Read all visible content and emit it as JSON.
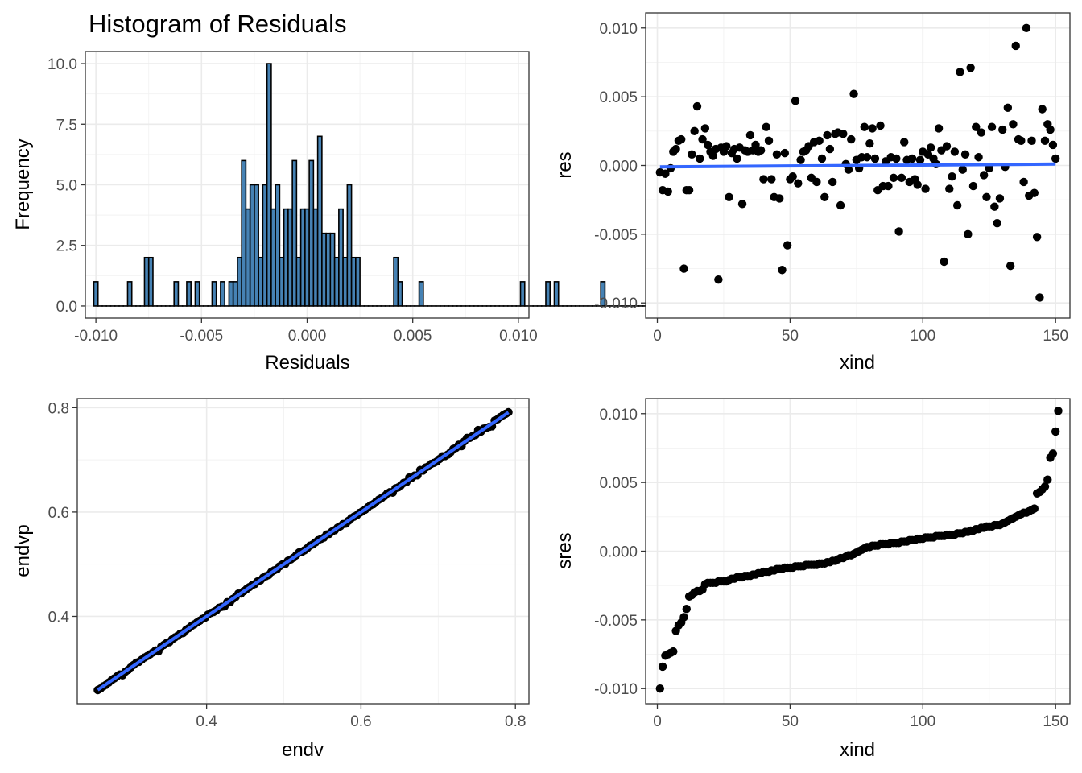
{
  "chart_data": [
    {
      "id": "hist",
      "type": "bar",
      "title": "Histogram of Residuals",
      "xlabel": "Residuals",
      "ylabel": "Frequency",
      "xlim": [
        -0.0105,
        0.0105
      ],
      "ylim": [
        -0.5,
        10.5
      ],
      "xticks": [
        -0.01,
        -0.005,
        0.0,
        0.005,
        0.01
      ],
      "xtick_labels": [
        "-0.010",
        "-0.005",
        "0.000",
        "0.005",
        "0.010"
      ],
      "yticks": [
        0,
        2.5,
        5,
        7.5,
        10
      ],
      "ytick_labels": [
        "0.0",
        "2.5",
        "5.0",
        "7.5",
        "10.0"
      ],
      "bin_start": -0.0101,
      "bin_width": 0.0002,
      "values": [
        1,
        0,
        0,
        0,
        0,
        0,
        0,
        0,
        1,
        0,
        0,
        0,
        2,
        2,
        0,
        0,
        0,
        0,
        0,
        1,
        0,
        0,
        1,
        0,
        1,
        0,
        0,
        0,
        1,
        0,
        1,
        0,
        1,
        1,
        2,
        6,
        4,
        5,
        5,
        2,
        5,
        10,
        4,
        5,
        2,
        4,
        4,
        6,
        2,
        4,
        4,
        6,
        4,
        7,
        3,
        3,
        3,
        2,
        4,
        2,
        5,
        2,
        2,
        0,
        0,
        0,
        0,
        0,
        0,
        0,
        0,
        2,
        1,
        0,
        0,
        0,
        0,
        1,
        0,
        0,
        0,
        0,
        0,
        0,
        0,
        0,
        0,
        0,
        0,
        0,
        0,
        0,
        0,
        0,
        0,
        0,
        0,
        0,
        0,
        0,
        0,
        1,
        0,
        0,
        0,
        0,
        0,
        1,
        0,
        1,
        0,
        0,
        0,
        0,
        0,
        0,
        0,
        0,
        0,
        0,
        1,
        0,
        0,
        0,
        0,
        0,
        0,
        0,
        0,
        0,
        0,
        0,
        1
      ],
      "bar_fill": "#4682b4",
      "bar_stroke": "#000000"
    },
    {
      "id": "res",
      "type": "scatter",
      "title": "",
      "xlabel": "xind",
      "ylabel": "res",
      "xlim": [
        -4.4,
        155.4
      ],
      "ylim": [
        -0.0111,
        0.0111
      ],
      "xticks": [
        0,
        50,
        100,
        150
      ],
      "xtick_labels": [
        "0",
        "50",
        "100",
        "150"
      ],
      "yticks": [
        -0.01,
        -0.005,
        0.0,
        0.005,
        0.01
      ],
      "ytick_labels": [
        "-0.010",
        "-0.005",
        "0.000",
        "0.005",
        "0.010"
      ],
      "points": [
        [
          1,
          -0.0005
        ],
        [
          2,
          -0.0018
        ],
        [
          3,
          -0.0006
        ],
        [
          4,
          -0.0019
        ],
        [
          5,
          -0.0002
        ],
        [
          6,
          0.001
        ],
        [
          7,
          0.0012
        ],
        [
          8,
          0.0018
        ],
        [
          9,
          0.0019
        ],
        [
          10,
          -0.0075
        ],
        [
          11,
          -0.0018
        ],
        [
          12,
          -0.0018
        ],
        [
          13,
          0.0008
        ],
        [
          14,
          0.0025
        ],
        [
          15,
          0.0043
        ],
        [
          16,
          0.0005
        ],
        [
          17,
          0.0019
        ],
        [
          18,
          0.0027
        ],
        [
          19,
          0.0015
        ],
        [
          20,
          0.001
        ],
        [
          21,
          0.0007
        ],
        [
          22,
          0.0012
        ],
        [
          23,
          -0.0083
        ],
        [
          24,
          0.0013
        ],
        [
          25,
          0.001
        ],
        [
          26,
          0.0014
        ],
        [
          27,
          -0.0023
        ],
        [
          28,
          0.0009
        ],
        [
          29,
          0.0012
        ],
        [
          30,
          0.0005
        ],
        [
          31,
          0.0013
        ],
        [
          32,
          -0.0028
        ],
        [
          33,
          0.0011
        ],
        [
          34,
          0.001
        ],
        [
          35,
          0.0022
        ],
        [
          36,
          0.0011
        ],
        [
          37,
          0.0015
        ],
        [
          38,
          0.001
        ],
        [
          39,
          0.0011
        ],
        [
          40,
          -0.001
        ],
        [
          41,
          0.0028
        ],
        [
          42,
          0.0018
        ],
        [
          43,
          -0.001
        ],
        [
          44,
          -0.0023
        ],
        [
          45,
          0.0008
        ],
        [
          46,
          -0.0024
        ],
        [
          47,
          -0.0076
        ],
        [
          48,
          0.0009
        ],
        [
          49,
          -0.0058
        ],
        [
          50,
          -0.001
        ],
        [
          51,
          -0.0008
        ],
        [
          52,
          0.0047
        ],
        [
          53,
          -0.0013
        ],
        [
          54,
          0.0004
        ],
        [
          55,
          0.001
        ],
        [
          56,
          0.0011
        ],
        [
          57,
          0.0014
        ],
        [
          58,
          -0.0009
        ],
        [
          59,
          0.0017
        ],
        [
          60,
          -0.0012
        ],
        [
          61,
          0.0018
        ],
        [
          62,
          0.0005
        ],
        [
          63,
          -0.0023
        ],
        [
          64,
          0.0022
        ],
        [
          65,
          0.0012
        ],
        [
          66,
          -0.0012
        ],
        [
          67,
          0.0023
        ],
        [
          68,
          0.0024
        ],
        [
          69,
          -0.0029
        ],
        [
          70,
          0.0023
        ],
        [
          71,
          0.0001
        ],
        [
          72,
          -0.0003
        ],
        [
          73,
          0.0019
        ],
        [
          74,
          0.0052
        ],
        [
          75,
          0.0004
        ],
        [
          76,
          -0.0002
        ],
        [
          77,
          0.0006
        ],
        [
          78,
          0.0028
        ],
        [
          79,
          0.0006
        ],
        [
          80,
          0.0016
        ],
        [
          81,
          0.0027
        ],
        [
          82,
          0.0005
        ],
        [
          83,
          -0.0018
        ],
        [
          84,
          0.0029
        ],
        [
          85,
          -0.0015
        ],
        [
          86,
          0.0003
        ],
        [
          87,
          -0.0015
        ],
        [
          88,
          0.0006
        ],
        [
          89,
          -0.0009
        ],
        [
          90,
          0.0005
        ],
        [
          91,
          -0.0048
        ],
        [
          92,
          -0.0009
        ],
        [
          93,
          0.0017
        ],
        [
          94,
          0.0004
        ],
        [
          95,
          -0.0012
        ],
        [
          96,
          0.0005
        ],
        [
          97,
          -0.001
        ],
        [
          98,
          -0.0014
        ],
        [
          99,
          0.0004
        ],
        [
          100,
          0.001
        ],
        [
          101,
          -0.0017
        ],
        [
          102,
          0.0008
        ],
        [
          103,
          0.0013
        ],
        [
          104,
          0.0005
        ],
        [
          105,
          0.0001
        ],
        [
          106,
          0.0027
        ],
        [
          107,
          0.0011
        ],
        [
          108,
          -0.007
        ],
        [
          109,
          0.0014
        ],
        [
          110,
          -0.0017
        ],
        [
          111,
          -0.0008
        ],
        [
          112,
          0.001
        ],
        [
          113,
          -0.0029
        ],
        [
          114,
          0.0068
        ],
        [
          115,
          -0.0003
        ],
        [
          116,
          0.0008
        ],
        [
          117,
          -0.005
        ],
        [
          118,
          0.0071
        ],
        [
          119,
          -0.0015
        ],
        [
          120,
          0.0028
        ],
        [
          121,
          0.0006
        ],
        [
          122,
          0.0024
        ],
        [
          123,
          -0.0007
        ],
        [
          124,
          -0.0023
        ],
        [
          125,
          -0.0002
        ],
        [
          126,
          0.0028
        ],
        [
          127,
          -0.003
        ],
        [
          128,
          -0.0042
        ],
        [
          129,
          -0.0024
        ],
        [
          130,
          0.0026
        ],
        [
          131,
          -0.0001
        ],
        [
          132,
          0.0042
        ],
        [
          133,
          -0.0073
        ],
        [
          134,
          0.003
        ],
        [
          135,
          0.0087
        ],
        [
          136,
          0.0019
        ],
        [
          137,
          0.0018
        ],
        [
          138,
          -0.0012
        ],
        [
          139,
          0.01
        ],
        [
          140,
          -0.0022
        ],
        [
          141,
          0.0018
        ],
        [
          142,
          -0.002
        ],
        [
          143,
          -0.0052
        ],
        [
          144,
          -0.0096
        ],
        [
          145,
          0.0041
        ],
        [
          146,
          0.0018
        ],
        [
          147,
          0.003
        ],
        [
          148,
          0.0026
        ],
        [
          149,
          0.0015
        ],
        [
          150,
          0.0005
        ]
      ],
      "trend": [
        [
          1,
          -0.0001
        ],
        [
          150,
          0.0001
        ]
      ],
      "point_color": "#000000",
      "trend_color": "#3366ff"
    },
    {
      "id": "fit",
      "type": "scatter",
      "title": "",
      "xlabel": "endv",
      "ylabel": "endvp",
      "xlim": [
        0.2325,
        0.8175
      ],
      "ylim": [
        0.2325,
        0.8175
      ],
      "xticks": [
        0.4,
        0.6,
        0.8
      ],
      "xtick_labels": [
        "0.4",
        "0.6",
        "0.8"
      ],
      "yticks": [
        0.4,
        0.6,
        0.8
      ],
      "ytick_labels": [
        "0.4",
        "0.6",
        "0.8"
      ],
      "x_range": [
        0.259,
        0.791
      ],
      "n_points": 150,
      "trend": [
        [
          0.259,
          0.259
        ],
        [
          0.791,
          0.791
        ]
      ],
      "point_color": "#000000",
      "trend_color": "#3366ff"
    },
    {
      "id": "sres",
      "type": "scatter",
      "title": "",
      "xlabel": "xind",
      "ylabel": "sres",
      "xlim": [
        -4.4,
        155.4
      ],
      "ylim": [
        -0.0111,
        0.0111
      ],
      "xticks": [
        0,
        50,
        100,
        150
      ],
      "xtick_labels": [
        "0",
        "50",
        "100",
        "150"
      ],
      "yticks": [
        -0.01,
        -0.005,
        0.0,
        0.005,
        0.01
      ],
      "ytick_labels": [
        "-0.010",
        "-0.005",
        "0.000",
        "0.005",
        "0.010"
      ],
      "y_sorted": [
        -0.01,
        -0.0084,
        -0.0076,
        -0.0075,
        -0.0074,
        -0.0073,
        -0.0058,
        -0.0054,
        -0.0052,
        -0.0048,
        -0.0042,
        -0.0033,
        -0.0032,
        -0.003,
        -0.0029,
        -0.0029,
        -0.0028,
        -0.0024,
        -0.0023,
        -0.0023,
        -0.0023,
        -0.0023,
        -0.0022,
        -0.0022,
        -0.0022,
        -0.0022,
        -0.0021,
        -0.002,
        -0.002,
        -0.0019,
        -0.0019,
        -0.0019,
        -0.0018,
        -0.0018,
        -0.0018,
        -0.0017,
        -0.0017,
        -0.0016,
        -0.0016,
        -0.0015,
        -0.0015,
        -0.0015,
        -0.0014,
        -0.0014,
        -0.0013,
        -0.0013,
        -0.0013,
        -0.0012,
        -0.0012,
        -0.0012,
        -0.0012,
        -0.0011,
        -0.0011,
        -0.0011,
        -0.0011,
        -0.001,
        -0.001,
        -0.001,
        -0.001,
        -0.001,
        -0.0009,
        -0.0009,
        -0.0009,
        -0.0008,
        -0.0008,
        -0.0007,
        -0.0007,
        -0.0006,
        -0.0005,
        -0.0005,
        -0.0004,
        -0.0003,
        -0.0003,
        -0.0002,
        -0.0001,
        0.0,
        0.0001,
        0.0002,
        0.0003,
        0.0003,
        0.0004,
        0.0004,
        0.0004,
        0.0005,
        0.0005,
        0.0005,
        0.0005,
        0.0006,
        0.0006,
        0.0006,
        0.0006,
        0.0007,
        0.0007,
        0.0007,
        0.0008,
        0.0008,
        0.0008,
        0.0009,
        0.0009,
        0.0009,
        0.001,
        0.001,
        0.001,
        0.001,
        0.0011,
        0.0011,
        0.0011,
        0.0011,
        0.0012,
        0.0012,
        0.0012,
        0.0012,
        0.0013,
        0.0013,
        0.0013,
        0.0014,
        0.0014,
        0.0015,
        0.0015,
        0.0016,
        0.0016,
        0.0017,
        0.0017,
        0.0018,
        0.0018,
        0.0018,
        0.0019,
        0.0019,
        0.0019,
        0.002,
        0.0021,
        0.0022,
        0.0023,
        0.0024,
        0.0025,
        0.0026,
        0.0027,
        0.0028,
        0.0028,
        0.0029,
        0.003,
        0.0031,
        0.0042,
        0.0043,
        0.0045,
        0.0047,
        0.0052,
        0.0068,
        0.0071,
        0.0087,
        0.0102
      ],
      "point_color": "#000000"
    }
  ]
}
